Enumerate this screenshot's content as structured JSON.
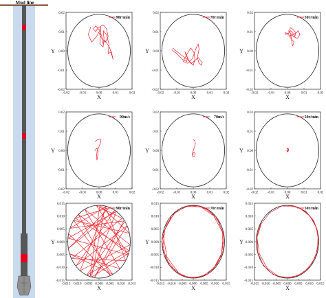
{
  "riser": {
    "mud_line_label": "Mud line",
    "colors": {
      "water": "#c9d9ee",
      "pipe": "#575757",
      "joint": "#e4001b",
      "bit": "#8f8f8f"
    }
  },
  "plot_style": {
    "trajectory_color": "#e8212a",
    "boundary_color": "#333333"
  },
  "chart_data": [
    {
      "type": "scatter",
      "row": 1,
      "col": 1,
      "legend": "90r/min",
      "xlabel": "X",
      "ylabel": "Y",
      "xlim": [
        -0.02,
        0.02
      ],
      "ylim": [
        -0.02,
        0.02
      ],
      "xticks": [
        "-0.02",
        "-0.01",
        "0.00",
        "0.01",
        "0.02"
      ],
      "yticks": [
        "-0.02",
        "-0.01",
        "0.00",
        "0.01",
        "0.02"
      ],
      "boundary_radius": 0.019,
      "x": [
        -0.005,
        -0.0065,
        -0.0045,
        -0.0015,
        0.0005,
        0.001,
        0.0005,
        0.0025,
        0.003,
        0.0025,
        0.0045,
        0.006,
        0.0055,
        0.0075,
        0.0085,
        0.0065,
        0.0035,
        0.0025,
        0.002,
        0.0005,
        -0.002,
        -0.0035,
        -0.002,
        -0.0005,
        0.0025,
        0.0045,
        0.0055,
        0.004,
        0.0015,
        0.0
      ],
      "y": [
        0.0125,
        0.0085,
        0.0045,
        0.0075,
        0.0105,
        0.0125,
        0.0035,
        0.002,
        0.0065,
        0.0105,
        0.0085,
        0.0035,
        -0.0015,
        -0.0005,
        -0.0045,
        0.0015,
        0.0055,
        0.0035,
        0.0065,
        0.0105,
        0.013,
        0.0115,
        0.01,
        0.012,
        0.0135,
        0.0115,
        0.0075,
        0.0045,
        0.0065,
        0.0095
      ]
    },
    {
      "type": "scatter",
      "row": 1,
      "col": 2,
      "legend": "70r/min",
      "xlabel": "X",
      "ylabel": "Y",
      "xlim": [
        -0.02,
        0.02
      ],
      "ylim": [
        -0.02,
        0.02
      ],
      "xticks": [
        "-0.02",
        "-0.01",
        "0.00",
        "0.01",
        "0.02"
      ],
      "yticks": [
        "-0.02",
        "-0.01",
        "0.00",
        "0.01",
        "0.02"
      ],
      "boundary_radius": 0.019,
      "x": [
        -0.013,
        -0.01,
        -0.0065,
        -0.004,
        -0.0035,
        -0.005,
        -0.0045,
        -0.002,
        0.0,
        0.001,
        0.0005,
        -0.0015,
        -0.004,
        -0.006,
        -0.0035,
        -0.0005,
        0.0015,
        0.003,
        0.0035,
        0.0025,
        0.0035,
        0.005,
        0.0055,
        0.003,
        0.001,
        -0.001,
        -0.0035,
        -0.0075,
        -0.0105,
        -0.0125
      ],
      "y": [
        0.0005,
        -0.0015,
        -0.0045,
        -0.0055,
        -0.0035,
        -0.0005,
        -0.002,
        -0.006,
        -0.0075,
        -0.0045,
        -0.001,
        0.0015,
        -0.002,
        -0.0055,
        -0.0065,
        -0.004,
        0.001,
        0.0035,
        0.001,
        -0.0035,
        -0.0065,
        -0.0075,
        -0.006,
        -0.0035,
        -0.005,
        -0.0065,
        -0.0045,
        -0.002,
        0.0,
        0.0015
      ]
    },
    {
      "type": "scatter",
      "row": 1,
      "col": 3,
      "legend": "50r/min",
      "xlabel": "X",
      "ylabel": "Y",
      "xlim": [
        -0.02,
        0.02
      ],
      "ylim": [
        -0.02,
        0.02
      ],
      "xticks": [
        "-0.02",
        "-0.01",
        "0.00",
        "0.01",
        "0.02"
      ],
      "yticks": [
        "-0.02",
        "-0.01",
        "0.00",
        "0.01",
        "0.02"
      ],
      "boundary_radius": 0.019,
      "x": [
        -0.0005,
        0.001,
        0.0015,
        0.002,
        0.0035,
        0.005,
        0.0045,
        0.003,
        0.002,
        0.0005,
        -0.0015,
        -0.001,
        0.0005,
        0.0025,
        0.004,
        0.003,
        0.0025,
        0.002,
        0.0015,
        0.0035,
        0.0055,
        0.0065,
        0.0075,
        0.006,
        0.0035,
        0.0015,
        0.0005
      ],
      "y": [
        0.0085,
        0.0095,
        0.0115,
        0.012,
        0.011,
        0.0095,
        0.0075,
        0.0095,
        0.0105,
        0.009,
        0.0085,
        0.0095,
        0.0085,
        0.006,
        0.0045,
        0.0025,
        0.0055,
        0.0085,
        0.0075,
        0.0085,
        0.0095,
        0.0105,
        0.0085,
        0.0065,
        0.0075,
        0.0095,
        0.0105
      ]
    },
    {
      "type": "scatter",
      "row": 2,
      "col": 1,
      "legend": "90m/s",
      "xlabel": "X",
      "ylabel": "Y",
      "xlim": [
        -0.02,
        0.02
      ],
      "ylim": [
        -0.02,
        0.02
      ],
      "xticks": [
        "-0.02",
        "-0.01",
        "0.00",
        "0.01",
        "0.02"
      ],
      "yticks": [
        "-0.02",
        "-0.01",
        "0.00",
        "0.01",
        "0.02"
      ],
      "boundary_radius": 0.019,
      "x": [
        -0.0025,
        -0.001,
        0.0008,
        0.0012,
        0.0,
        -0.0012,
        -0.0015,
        -0.0013,
        -0.001,
        -0.0005,
        -0.0012,
        -0.002,
        -0.0026
      ],
      "y": [
        0.0045,
        0.0055,
        0.006,
        0.0045,
        0.002,
        -0.0005,
        -0.003,
        -0.005,
        -0.0042,
        -0.0005,
        0.0012,
        0.0005,
        -0.0002
      ]
    },
    {
      "type": "scatter",
      "row": 2,
      "col": 2,
      "legend": "70m/s",
      "xlabel": "X",
      "ylabel": "Y",
      "xlim": [
        -0.02,
        0.02
      ],
      "ylim": [
        -0.02,
        0.02
      ],
      "xticks": [
        "-0.02",
        "-0.01",
        "0.00",
        "0.01",
        "0.02"
      ],
      "yticks": [
        "-0.02",
        "-0.01",
        "0.00",
        "0.01",
        "0.02"
      ],
      "boundary_radius": 0.019,
      "x": [
        0.0,
        0.001,
        0.0013,
        0.0006,
        -0.0002,
        -0.0006,
        -0.0002,
        0.0008,
        0.0012,
        0.0005,
        -0.0002,
        0.0
      ],
      "y": [
        0.0055,
        0.005,
        0.0035,
        0.0015,
        -0.0005,
        -0.0022,
        -0.0035,
        -0.0032,
        -0.0018,
        -0.0009,
        -0.0015,
        -0.0025
      ]
    },
    {
      "type": "scatter",
      "row": 2,
      "col": 3,
      "legend": "50r/min",
      "xlabel": "X",
      "ylabel": "Y",
      "xlim": [
        -0.02,
        0.02
      ],
      "ylim": [
        -0.02,
        0.02
      ],
      "xticks": [
        "-0.02",
        "-0.01",
        "0.00",
        "0.01",
        "0.02"
      ],
      "yticks": [
        "-0.02",
        "-0.01",
        "0.00",
        "0.01",
        "0.02"
      ],
      "boundary_radius": 0.019,
      "x": [
        0.0,
        0.0006,
        0.0007,
        0.0003,
        -0.0002,
        -0.0004,
        -0.0001,
        0.0004,
        0.0006,
        0.0002,
        -0.0003,
        0.0
      ],
      "y": [
        0.0012,
        0.0008,
        0.0001,
        -0.0006,
        -0.0008,
        -0.0002,
        0.0006,
        0.0009,
        0.0003,
        -0.0004,
        0.0,
        0.0012
      ]
    },
    {
      "type": "scatter",
      "row": 3,
      "col": 1,
      "legend": "90r/min",
      "xlabel": "X",
      "ylabel": "Y",
      "xlim": [
        -0.015,
        0.015
      ],
      "ylim": [
        -0.015,
        0.015
      ],
      "xticks": [
        "-0.015",
        "-0.010",
        "-0.005",
        "0.000",
        "0.005",
        "0.010",
        "0.015"
      ],
      "yticks": [
        "-0.015",
        "-0.010",
        "-0.005",
        "0.000",
        "0.005",
        "0.010",
        "0.015"
      ],
      "boundary_radius": 0.0142,
      "x": [
        -0.0138,
        0.0052,
        -0.0094,
        0.0132,
        -0.0034,
        0.0028,
        0.0121,
        -0.0125,
        0.0105,
        -0.0012,
        0.0134,
        -0.0141,
        0.0079,
        -0.0041,
        0.0004,
        0.0138,
        -0.0115,
        0.0062,
        -0.0135,
        0.0094,
        -0.0065,
        0.0141,
        -0.0086,
        0.0033,
        -0.0132,
        0.0112,
        -0.0021,
        0.0127,
        -0.0104,
        0.0071,
        -0.0139,
        0.0048,
        -0.0108,
        0.0137,
        -0.0056,
        0.0117
      ],
      "y": [
        0.0031,
        -0.0132,
        0.0107,
        -0.0047,
        -0.0138,
        0.0139,
        -0.0074,
        -0.0066,
        0.0091,
        0.0141,
        -0.0052,
        0.0014,
        0.0118,
        -0.0136,
        0.0142,
        0.0033,
        0.0083,
        -0.0127,
        -0.0047,
        -0.0105,
        0.0126,
        -0.0012,
        -0.0113,
        0.0138,
        0.0052,
        0.0081,
        -0.014,
        0.0062,
        -0.0094,
        0.0121,
        -0.0026,
        0.0133,
        0.0092,
        -0.0035,
        -0.0131,
        0.0078
      ]
    },
    {
      "type": "scatter",
      "row": 3,
      "col": 2,
      "legend": "70r/min",
      "xlabel": "X",
      "ylabel": "Y",
      "xlim": [
        -0.015,
        0.015
      ],
      "ylim": [
        -0.015,
        0.015
      ],
      "xticks": [
        "-0.015",
        "-0.010",
        "-0.005",
        "0.000",
        "0.005",
        "0.010",
        "0.015"
      ],
      "yticks": [
        "-0.015",
        "-0.010",
        "-0.005",
        "0.000",
        "0.005",
        "0.010",
        "0.015"
      ],
      "boundary_radius": 0.0142,
      "x": [
        -0.0098,
        -0.0138,
        -0.0119,
        -0.0061,
        -0.0009,
        0.0045,
        0.0094,
        0.0128,
        0.0141,
        0.0116,
        0.0072,
        0.0019,
        -0.0038,
        -0.0088,
        -0.0129,
        -0.0139,
        -0.0107,
        -0.0052,
        0.0004,
        0.0063,
        0.0108,
        0.0136,
        0.0132,
        0.0093,
        0.0036,
        -0.0022,
        -0.0078,
        -0.0121,
        -0.0142,
        -0.0124,
        -0.0079,
        -0.0021,
        0.0038,
        0.0091,
        0.0127,
        0.0137,
        0.0103,
        0.0049,
        -0.001
      ],
      "y": [
        0.0102,
        0.0031,
        -0.0061,
        -0.0128,
        -0.0141,
        -0.0134,
        -0.0102,
        -0.0047,
        0.0018,
        0.0078,
        0.0122,
        0.0141,
        0.0136,
        0.0109,
        0.0048,
        -0.0026,
        -0.0093,
        -0.0132,
        -0.0142,
        -0.0127,
        -0.0088,
        -0.0035,
        0.0038,
        0.0101,
        0.0135,
        0.014,
        0.0117,
        0.0069,
        0.0003,
        -0.0067,
        -0.0117,
        -0.014,
        -0.0136,
        -0.0107,
        -0.0056,
        0.0033,
        0.0098,
        0.0133,
        0.0141
      ]
    },
    {
      "type": "scatter",
      "row": 3,
      "col": 3,
      "legend": "50r/min",
      "xlabel": "X",
      "ylabel": "Y",
      "xlim": [
        -0.015,
        0.015
      ],
      "ylim": [
        -0.015,
        0.015
      ],
      "xticks": [
        "-0.015",
        "-0.010",
        "-0.005",
        "0.000",
        "0.005",
        "0.010",
        "0.015"
      ],
      "yticks": [
        "-0.015",
        "-0.010",
        "-0.005",
        "0.000",
        "0.005",
        "0.010",
        "0.015"
      ],
      "boundary_radius": 0.0142,
      "x": [
        -0.0121,
        -0.0139,
        -0.0128,
        -0.0092,
        -0.0041,
        0.0016,
        0.0071,
        0.0112,
        0.0136,
        0.0139,
        0.012,
        0.0083,
        0.0031,
        -0.0026,
        -0.0079,
        -0.0118,
        -0.0138,
        -0.0135,
        -0.0109,
        -0.0065,
        -0.001,
        0.0046,
        0.0095,
        0.0128,
        0.0141,
        0.0131,
        0.0101,
        0.0055,
        0.0
      ],
      "y": [
        0.0072,
        0.0021,
        -0.0046,
        -0.0104,
        -0.0135,
        -0.0141,
        -0.0122,
        -0.0084,
        -0.0033,
        0.0028,
        0.0081,
        0.0119,
        0.0139,
        0.0139,
        0.0114,
        0.0072,
        0.0018,
        -0.0041,
        -0.0094,
        -0.0128,
        -0.0141,
        -0.0133,
        -0.0104,
        -0.0057,
        0.0002,
        0.0056,
        0.0101,
        0.0131,
        0.0142
      ]
    }
  ]
}
